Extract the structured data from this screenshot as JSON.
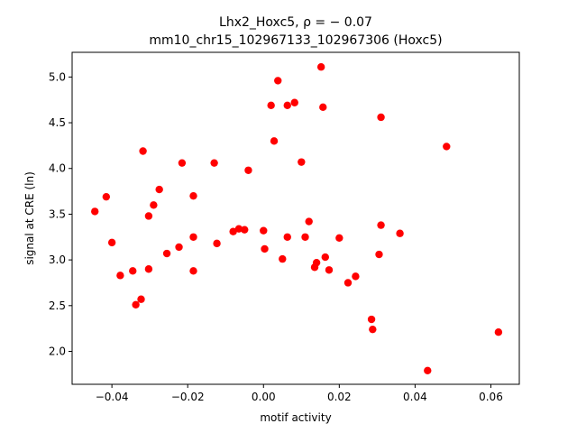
{
  "chart_data": {
    "type": "scatter",
    "title_line1": "Lhx2_Hoxc5, ρ = − 0.07",
    "title_line2": "mm10_chr15_102967133_102967306 (Hoxc5)",
    "xlabel": "motif activity",
    "ylabel": "signal at CRE (ln)",
    "xlim": [
      -0.0505,
      0.0675
    ],
    "ylim": [
      1.64,
      5.27
    ],
    "xticks": [
      -0.04,
      -0.02,
      0.0,
      0.02,
      0.04,
      0.06
    ],
    "xtick_labels": [
      "−0.04",
      "−0.02",
      "0.00",
      "0.02",
      "0.04",
      "0.06"
    ],
    "yticks": [
      2.0,
      2.5,
      3.0,
      3.5,
      4.0,
      4.5,
      5.0
    ],
    "ytick_labels": [
      "2.0",
      "2.5",
      "3.0",
      "3.5",
      "4.0",
      "4.5",
      "5.0"
    ],
    "grid": false,
    "marker_color": "#ff0000",
    "points": [
      {
        "x": -0.0445,
        "y": 3.53
      },
      {
        "x": -0.0415,
        "y": 3.69
      },
      {
        "x": -0.04,
        "y": 3.19
      },
      {
        "x": -0.0378,
        "y": 2.83
      },
      {
        "x": -0.0345,
        "y": 2.88
      },
      {
        "x": -0.0337,
        "y": 2.51
      },
      {
        "x": -0.0323,
        "y": 2.57
      },
      {
        "x": -0.0318,
        "y": 4.19
      },
      {
        "x": -0.0303,
        "y": 3.48
      },
      {
        "x": -0.0303,
        "y": 2.9
      },
      {
        "x": -0.029,
        "y": 3.6
      },
      {
        "x": -0.0275,
        "y": 3.77
      },
      {
        "x": -0.0255,
        "y": 3.07
      },
      {
        "x": -0.0223,
        "y": 3.14
      },
      {
        "x": -0.0215,
        "y": 4.06
      },
      {
        "x": -0.0185,
        "y": 3.7
      },
      {
        "x": -0.0185,
        "y": 3.25
      },
      {
        "x": -0.0185,
        "y": 2.88
      },
      {
        "x": -0.013,
        "y": 4.06
      },
      {
        "x": -0.0123,
        "y": 3.18
      },
      {
        "x": -0.008,
        "y": 3.31
      },
      {
        "x": -0.0065,
        "y": 3.34
      },
      {
        "x": -0.005,
        "y": 3.33
      },
      {
        "x": -0.004,
        "y": 3.98
      },
      {
        "x": 0.0,
        "y": 3.32
      },
      {
        "x": 0.0003,
        "y": 3.12
      },
      {
        "x": 0.002,
        "y": 4.69
      },
      {
        "x": 0.0028,
        "y": 4.3
      },
      {
        "x": 0.0038,
        "y": 4.96
      },
      {
        "x": 0.005,
        "y": 3.01
      },
      {
        "x": 0.0063,
        "y": 4.69
      },
      {
        "x": 0.0063,
        "y": 3.25
      },
      {
        "x": 0.0082,
        "y": 4.72
      },
      {
        "x": 0.01,
        "y": 4.07
      },
      {
        "x": 0.011,
        "y": 3.25
      },
      {
        "x": 0.012,
        "y": 3.42
      },
      {
        "x": 0.0135,
        "y": 2.92
      },
      {
        "x": 0.014,
        "y": 2.97
      },
      {
        "x": 0.0152,
        "y": 5.11
      },
      {
        "x": 0.0157,
        "y": 4.67
      },
      {
        "x": 0.0163,
        "y": 3.03
      },
      {
        "x": 0.0173,
        "y": 2.89
      },
      {
        "x": 0.02,
        "y": 3.24
      },
      {
        "x": 0.0223,
        "y": 2.75
      },
      {
        "x": 0.0243,
        "y": 2.82
      },
      {
        "x": 0.0285,
        "y": 2.35
      },
      {
        "x": 0.0288,
        "y": 2.24
      },
      {
        "x": 0.0305,
        "y": 3.06
      },
      {
        "x": 0.031,
        "y": 4.56
      },
      {
        "x": 0.031,
        "y": 3.38
      },
      {
        "x": 0.036,
        "y": 3.29
      },
      {
        "x": 0.0433,
        "y": 1.79
      },
      {
        "x": 0.0483,
        "y": 4.24
      },
      {
        "x": 0.062,
        "y": 2.21
      }
    ]
  }
}
